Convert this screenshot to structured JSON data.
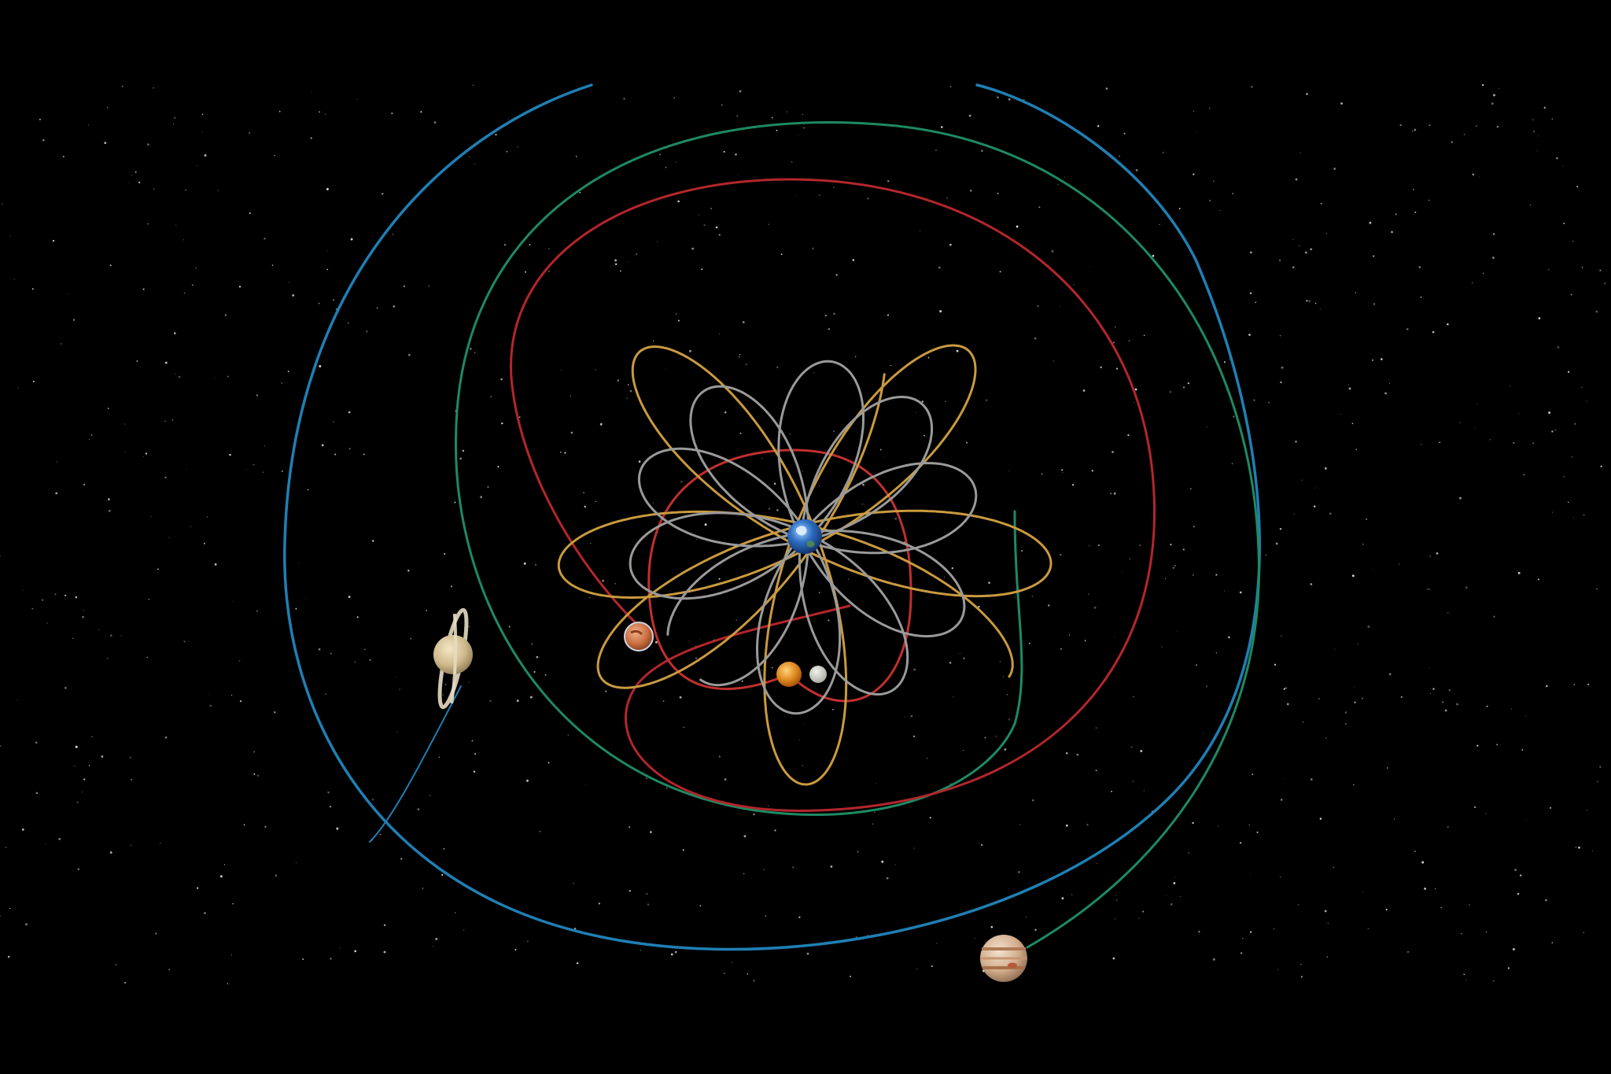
{
  "scene": {
    "background": "#000000",
    "starfield": true,
    "center_body": "earth",
    "letterbox": [
      "top",
      "bottom"
    ]
  },
  "orbit_paths": [
    {
      "body": "saturn",
      "color": "#1f7fb4",
      "shape": "loop"
    },
    {
      "body": "jupiter",
      "color": "#1e8a62",
      "shape": "loop"
    },
    {
      "body": "mars",
      "color": "#b3262b",
      "shape": "loop"
    },
    {
      "body": "venus",
      "color": "#c99a3f",
      "shape": "epicycle"
    },
    {
      "body": "mercury",
      "color": "#9a9a9a",
      "shape": "epicycle"
    },
    {
      "body": "sun",
      "color": "#c0302e",
      "shape": "circle"
    }
  ],
  "bodies": [
    {
      "name": "earth",
      "icon": "earth-icon"
    },
    {
      "name": "saturn",
      "icon": "saturn-icon"
    },
    {
      "name": "jupiter",
      "icon": "jupiter-icon"
    },
    {
      "name": "mars",
      "icon": "mars-icon"
    },
    {
      "name": "sun",
      "icon": "sun-icon"
    },
    {
      "name": "moon",
      "icon": "moon-icon"
    }
  ]
}
